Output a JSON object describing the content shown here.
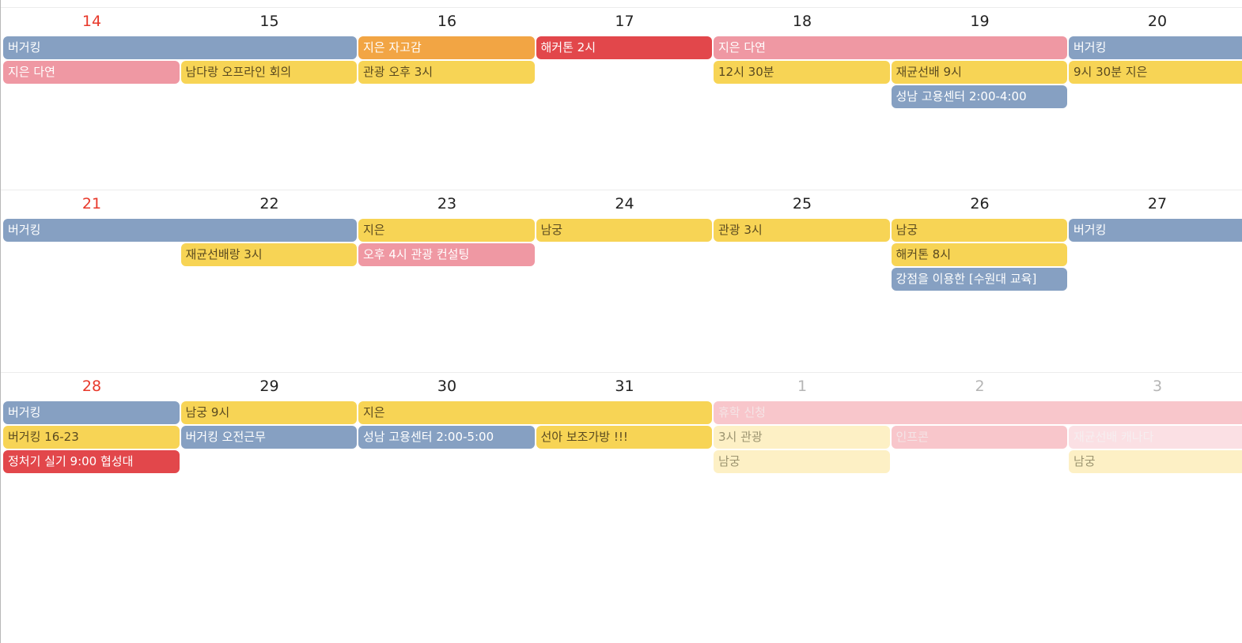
{
  "weeks": [
    {
      "days": [
        {
          "label": "14",
          "type": "sun"
        },
        {
          "label": "15",
          "type": "normal"
        },
        {
          "label": "16",
          "type": "normal"
        },
        {
          "label": "17",
          "type": "normal"
        },
        {
          "label": "18",
          "type": "normal"
        },
        {
          "label": "19",
          "type": "normal"
        },
        {
          "label": "20",
          "type": "normal"
        }
      ],
      "events": [
        {
          "title": "버거킹",
          "color": "blue",
          "start": 0,
          "span": 2,
          "row": 0
        },
        {
          "title": "지은 자고감",
          "color": "orange",
          "start": 2,
          "span": 1,
          "row": 0
        },
        {
          "title": "해커톤 2시",
          "color": "red",
          "start": 3,
          "span": 1,
          "row": 0
        },
        {
          "title": "지은 다연",
          "color": "pink",
          "start": 4,
          "span": 2,
          "row": 0
        },
        {
          "title": "버거킹",
          "color": "blue",
          "start": 6,
          "span": 1,
          "row": 0,
          "open": true
        },
        {
          "title": "지은 다연",
          "color": "pink",
          "start": 0,
          "span": 1,
          "row": 1
        },
        {
          "title": "남다랑 오프라인 회의",
          "color": "yellow",
          "start": 1,
          "span": 1,
          "row": 1
        },
        {
          "title": "관광 오후 3시",
          "color": "yellow",
          "start": 2,
          "span": 1,
          "row": 1
        },
        {
          "title": "12시 30분",
          "color": "yellow",
          "start": 4,
          "span": 1,
          "row": 1
        },
        {
          "title": "재균선배 9시",
          "color": "yellow",
          "start": 5,
          "span": 1,
          "row": 1
        },
        {
          "title": "9시 30분 지은",
          "color": "yellow",
          "start": 6,
          "span": 1,
          "row": 1,
          "open": true
        },
        {
          "title": "성남 고용센터 2:00-4:00",
          "color": "blue",
          "start": 5,
          "span": 1,
          "row": 2
        }
      ]
    },
    {
      "days": [
        {
          "label": "21",
          "type": "sun"
        },
        {
          "label": "22",
          "type": "normal"
        },
        {
          "label": "23",
          "type": "normal"
        },
        {
          "label": "24",
          "type": "normal"
        },
        {
          "label": "25",
          "type": "normal"
        },
        {
          "label": "26",
          "type": "normal"
        },
        {
          "label": "27",
          "type": "normal"
        }
      ],
      "events": [
        {
          "title": "버거킹",
          "color": "blue",
          "start": 0,
          "span": 2,
          "row": 0
        },
        {
          "title": "지은",
          "color": "yellow",
          "start": 2,
          "span": 1,
          "row": 0
        },
        {
          "title": "남궁",
          "color": "yellow",
          "start": 3,
          "span": 1,
          "row": 0
        },
        {
          "title": "관광 3시",
          "color": "yellow",
          "start": 4,
          "span": 1,
          "row": 0
        },
        {
          "title": "남궁",
          "color": "yellow",
          "start": 5,
          "span": 1,
          "row": 0
        },
        {
          "title": "버거킹",
          "color": "blue",
          "start": 6,
          "span": 1,
          "row": 0,
          "open": true
        },
        {
          "title": "재균선배랑 3시",
          "color": "yellow",
          "start": 1,
          "span": 1,
          "row": 1
        },
        {
          "title": "오후 4시 관광 컨설팅",
          "color": "pink",
          "start": 2,
          "span": 1,
          "row": 1
        },
        {
          "title": "해커톤 8시",
          "color": "yellow",
          "start": 5,
          "span": 1,
          "row": 1
        },
        {
          "title": "강점을 이용한 [수원대 교육]",
          "color": "blue",
          "start": 5,
          "span": 1,
          "row": 2
        }
      ]
    },
    {
      "days": [
        {
          "label": "28",
          "type": "sun"
        },
        {
          "label": "29",
          "type": "normal"
        },
        {
          "label": "30",
          "type": "normal"
        },
        {
          "label": "31",
          "type": "normal"
        },
        {
          "label": "1",
          "type": "other"
        },
        {
          "label": "2",
          "type": "other"
        },
        {
          "label": "3",
          "type": "other"
        }
      ],
      "events": [
        {
          "title": "버거킹",
          "color": "blue",
          "start": 0,
          "span": 1,
          "row": 0
        },
        {
          "title": "남궁 9시",
          "color": "yellow",
          "start": 1,
          "span": 1,
          "row": 0
        },
        {
          "title": "지은",
          "color": "yellow",
          "start": 2,
          "span": 2,
          "row": 0
        },
        {
          "title": "휴학 신청",
          "color": "faded-pink",
          "start": 4,
          "span": 3,
          "row": 0,
          "open": true
        },
        {
          "title": "버거킹 16-23",
          "color": "yellow",
          "start": 0,
          "span": 1,
          "row": 1
        },
        {
          "title": "버거킹 오전근무",
          "color": "blue",
          "start": 1,
          "span": 1,
          "row": 1
        },
        {
          "title": "성남 고용센터 2:00-5:00",
          "color": "blue",
          "start": 2,
          "span": 1,
          "row": 1
        },
        {
          "title": "선아 보조가방 !!!",
          "color": "yellow",
          "start": 3,
          "span": 1,
          "row": 1
        },
        {
          "title": "3시 관광",
          "color": "faded-yellow",
          "start": 4,
          "span": 1,
          "row": 1
        },
        {
          "title": "인프콘",
          "color": "faded-pink",
          "start": 5,
          "span": 1,
          "row": 1
        },
        {
          "title": "재균선배 캐나다",
          "color": "faded-lpink",
          "start": 6,
          "span": 1,
          "row": 1,
          "open": true
        },
        {
          "title": "정처기 실기 9:00 협성대",
          "color": "red",
          "start": 0,
          "span": 1,
          "row": 2
        },
        {
          "title": "남궁",
          "color": "faded-yellow",
          "start": 4,
          "span": 1,
          "row": 2
        },
        {
          "title": "남궁",
          "color": "faded-yellow",
          "start": 6,
          "span": 1,
          "row": 2,
          "open": true
        }
      ]
    }
  ]
}
